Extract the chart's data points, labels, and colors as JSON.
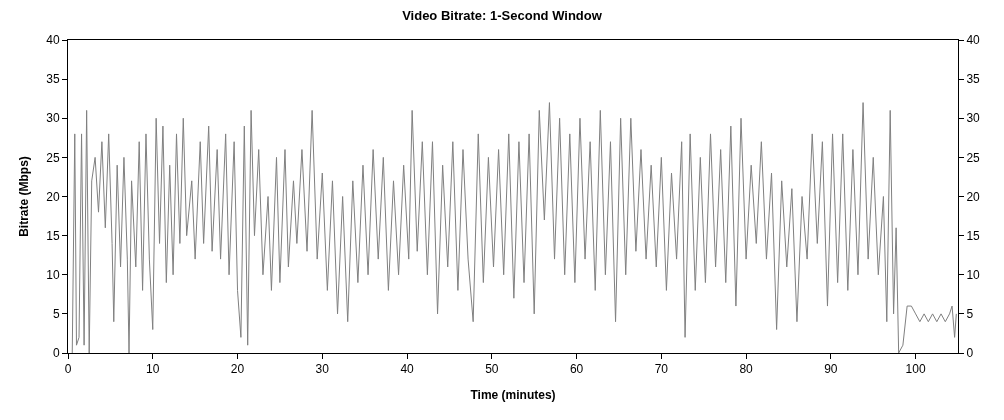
{
  "chart_data": {
    "type": "line",
    "title": "Video Bitrate: 1-Second Window",
    "xlabel": "Time (minutes)",
    "ylabel": "Bitrate (Mbps)",
    "x": [
      0.5,
      0.8,
      1.0,
      1.3,
      1.6,
      1.9,
      2.2,
      2.5,
      2.8,
      3.2,
      3.6,
      4.0,
      4.4,
      4.8,
      5.2,
      5.4,
      5.8,
      6.2,
      6.6,
      7.0,
      7.2,
      7.5,
      8.0,
      8.4,
      8.8,
      9.2,
      9.6,
      10.0,
      10.4,
      10.8,
      11.2,
      11.6,
      12.0,
      12.4,
      12.8,
      13.2,
      13.6,
      14.0,
      14.6,
      15.0,
      15.6,
      16.0,
      16.6,
      17.0,
      17.6,
      18.0,
      18.6,
      19.0,
      19.6,
      20.0,
      20.4,
      20.8,
      21.2,
      21.6,
      22.0,
      22.5,
      23.0,
      23.6,
      24.0,
      24.6,
      25.0,
      25.6,
      26.0,
      26.6,
      27.0,
      27.6,
      28.2,
      28.8,
      29.4,
      30.0,
      30.6,
      31.2,
      31.8,
      32.4,
      33.0,
      33.6,
      34.2,
      34.8,
      35.4,
      36.0,
      36.6,
      37.2,
      37.8,
      38.4,
      39.0,
      39.6,
      40.2,
      40.6,
      41.2,
      41.8,
      42.4,
      43.0,
      43.6,
      44.2,
      44.8,
      45.4,
      46.0,
      46.6,
      47.2,
      47.8,
      48.4,
      49.0,
      49.6,
      50.2,
      50.8,
      51.4,
      52.0,
      52.6,
      53.2,
      53.8,
      54.4,
      55.0,
      55.6,
      56.2,
      56.8,
      57.4,
      58.0,
      58.6,
      59.2,
      59.8,
      60.4,
      61.0,
      61.6,
      62.2,
      62.8,
      63.4,
      64.0,
      64.6,
      65.2,
      65.8,
      66.4,
      67.0,
      67.6,
      68.2,
      68.8,
      69.4,
      70.0,
      70.6,
      71.2,
      71.8,
      72.4,
      72.8,
      73.4,
      74.0,
      74.6,
      75.2,
      75.8,
      76.4,
      77.0,
      77.6,
      78.2,
      78.8,
      79.4,
      80.0,
      80.6,
      81.2,
      81.8,
      82.4,
      83.0,
      83.6,
      84.2,
      84.8,
      85.4,
      86.0,
      86.6,
      87.2,
      87.8,
      88.4,
      89.0,
      89.6,
      90.2,
      90.8,
      91.4,
      92.0,
      92.6,
      93.2,
      93.8,
      94.4,
      95.0,
      95.6,
      96.2,
      96.6,
      97.0,
      97.4,
      97.7,
      98.0,
      98.5,
      99.0,
      99.5,
      100.0,
      100.5,
      101.0,
      101.5,
      102.0,
      102.5,
      103.0,
      103.5,
      104.0,
      104.3,
      104.6,
      104.8
    ],
    "series": [
      {
        "color": "#808080",
        "values": [
          0,
          28,
          1,
          2,
          28,
          1,
          31,
          0,
          22,
          25,
          18,
          27,
          16,
          28,
          14,
          4,
          24,
          11,
          25,
          12,
          0,
          22,
          11,
          27,
          8,
          28,
          12,
          3,
          30,
          14,
          29,
          9,
          24,
          10,
          28,
          14,
          30,
          15,
          22,
          12,
          27,
          14,
          29,
          13,
          26,
          12,
          28,
          10,
          27,
          8,
          2,
          29,
          1,
          31,
          15,
          26,
          10,
          20,
          8,
          25,
          9,
          26,
          11,
          22,
          14,
          26,
          13,
          31,
          12,
          23,
          8,
          22,
          5,
          20,
          4,
          22,
          9,
          24,
          10,
          26,
          12,
          25,
          8,
          22,
          10,
          24,
          12,
          31,
          13,
          27,
          10,
          27,
          5,
          24,
          11,
          27,
          8,
          26,
          12,
          4,
          28,
          9,
          25,
          11,
          26,
          10,
          28,
          7,
          27,
          9,
          28,
          5,
          31,
          17,
          32,
          12,
          30,
          10,
          28,
          9,
          30,
          12,
          27,
          8,
          31,
          10,
          27,
          4,
          30,
          10,
          30,
          13,
          26,
          12,
          24,
          11,
          25,
          8,
          23,
          12,
          27,
          2,
          28,
          8,
          25,
          9,
          28,
          11,
          26,
          9,
          29,
          6,
          30,
          12,
          24,
          14,
          27,
          12,
          23,
          3,
          22,
          11,
          21,
          4,
          20,
          12,
          28,
          14,
          27,
          6,
          28,
          9,
          28,
          8,
          26,
          10,
          32,
          12,
          25,
          10,
          20,
          4,
          31,
          5,
          16,
          0,
          1,
          6,
          6,
          5,
          4,
          5,
          4,
          5,
          4,
          5,
          4,
          5,
          6,
          2,
          5
        ]
      }
    ],
    "xlim": [
      0,
      105
    ],
    "xticks": [
      0,
      10,
      20,
      30,
      40,
      50,
      60,
      70,
      80,
      90,
      100
    ],
    "ylim": [
      0,
      40
    ],
    "yticks": [
      0,
      5,
      10,
      15,
      20,
      25,
      30,
      35,
      40
    ],
    "y2lim": [
      0,
      40
    ],
    "y2ticks": [
      0,
      5,
      10,
      15,
      20,
      25,
      30,
      35,
      40
    ],
    "marker": "none",
    "line_style": "solid"
  }
}
